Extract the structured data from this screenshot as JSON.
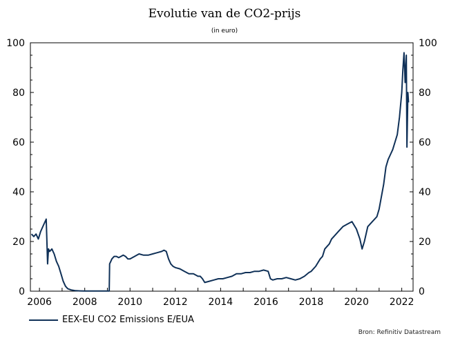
{
  "chart_data": {
    "type": "line",
    "title": "Evolutie van de CO2-prijs",
    "subtitle": "(in euro)",
    "xlabel": "",
    "ylabel": "",
    "xlim": [
      2005.6,
      2022.5
    ],
    "ylim": [
      0,
      100
    ],
    "x_ticks": [
      2006,
      2008,
      2010,
      2012,
      2014,
      2016,
      2018,
      2020,
      2022
    ],
    "y_ticks": [
      0,
      20,
      40,
      60,
      80,
      100
    ],
    "y_axis_right": true,
    "grid": false,
    "legend_position": "bottom-left",
    "series": [
      {
        "name": "EEX-EU CO2 Emissions E/EUA",
        "color": "#0f3057",
        "x": [
          2005.65,
          2005.75,
          2005.85,
          2005.95,
          2006.05,
          2006.15,
          2006.25,
          2006.3,
          2006.33,
          2006.36,
          2006.4,
          2006.45,
          2006.55,
          2006.65,
          2006.75,
          2006.85,
          2006.95,
          2007.05,
          2007.15,
          2007.25,
          2007.4,
          2007.6,
          2007.8,
          2008.0,
          2008.5,
          2009.0,
          2009.08,
          2009.1,
          2009.15,
          2009.2,
          2009.3,
          2009.4,
          2009.5,
          2009.6,
          2009.7,
          2009.8,
          2009.9,
          2010.0,
          2010.2,
          2010.4,
          2010.6,
          2010.8,
          2011.0,
          2011.2,
          2011.4,
          2011.5,
          2011.6,
          2011.7,
          2011.8,
          2011.9,
          2012.0,
          2012.2,
          2012.4,
          2012.6,
          2012.8,
          2013.0,
          2013.1,
          2013.2,
          2013.3,
          2013.5,
          2013.7,
          2013.9,
          2014.1,
          2014.3,
          2014.5,
          2014.7,
          2014.9,
          2015.1,
          2015.3,
          2015.5,
          2015.7,
          2015.9,
          2016.1,
          2016.2,
          2016.3,
          2016.5,
          2016.7,
          2016.9,
          2017.1,
          2017.3,
          2017.5,
          2017.7,
          2017.9,
          2018.0,
          2018.2,
          2018.4,
          2018.5,
          2018.6,
          2018.7,
          2018.8,
          2018.9,
          2019.0,
          2019.2,
          2019.4,
          2019.6,
          2019.8,
          2020.0,
          2020.15,
          2020.25,
          2020.35,
          2020.5,
          2020.7,
          2020.9,
          2021.0,
          2021.1,
          2021.2,
          2021.3,
          2021.4,
          2021.5,
          2021.6,
          2021.7,
          2021.8,
          2021.9,
          2022.0,
          2022.05,
          2022.1,
          2022.15,
          2022.2,
          2022.23,
          2022.27,
          2022.3
        ],
        "values": [
          23,
          22,
          23,
          21,
          24,
          26,
          28,
          29,
          20,
          11,
          17,
          16,
          17,
          15,
          12,
          10,
          7,
          4,
          2,
          1,
          0.5,
          0.2,
          0.1,
          0.05,
          0.05,
          0.05,
          0.05,
          11,
          12,
          13,
          14,
          14,
          13.5,
          14,
          14.5,
          14,
          13,
          13,
          14,
          15,
          14.5,
          14.5,
          15,
          15.5,
          16,
          16.5,
          16,
          13,
          11,
          10,
          9.5,
          9,
          8,
          7,
          7,
          6,
          6,
          5,
          3.5,
          4,
          4.5,
          5,
          5,
          5.5,
          6,
          7,
          7,
          7.5,
          7.5,
          8,
          8,
          8.5,
          8,
          5,
          4.5,
          5,
          5,
          5.5,
          5,
          4.5,
          5,
          6,
          7.5,
          8,
          10,
          13,
          14,
          17,
          18,
          19,
          21,
          22,
          24,
          26,
          27,
          28,
          25,
          21,
          17,
          20,
          26,
          28,
          30,
          33,
          38,
          43,
          50,
          53,
          55,
          57,
          60,
          63,
          70,
          80,
          89,
          96,
          84,
          95,
          58,
          80,
          76
        ]
      }
    ]
  },
  "legend": {
    "label": "EEX-EU CO2 Emissions E/EUA"
  },
  "source": "Bron: Refinitiv Datastream"
}
